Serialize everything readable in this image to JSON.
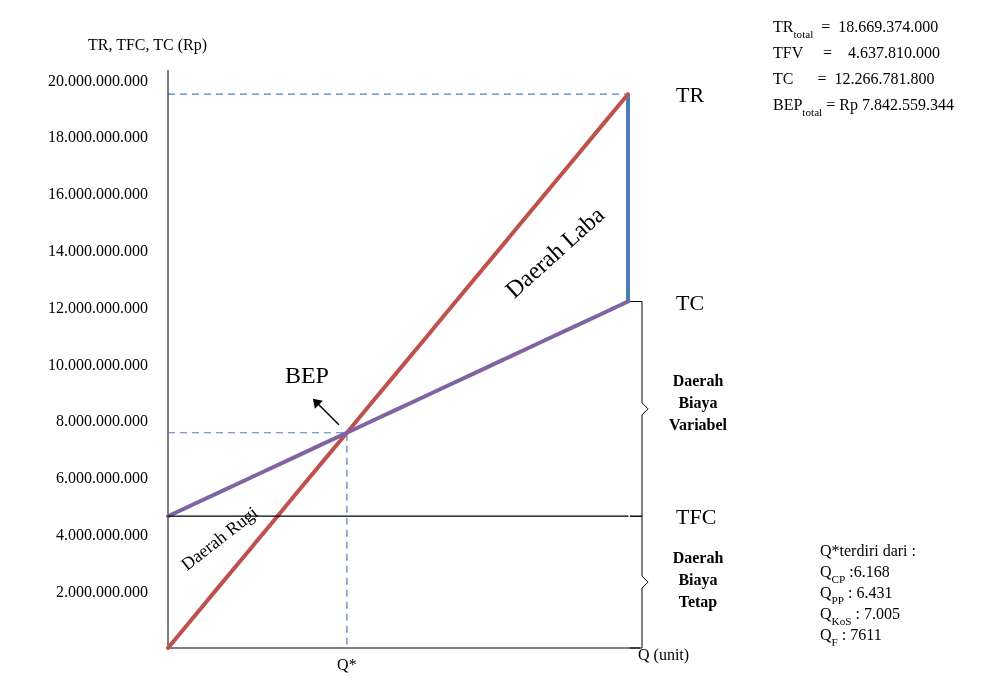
{
  "chart_data": {
    "type": "line",
    "xlabel": "Q (unit)",
    "ylabel": "TR, TFC, TC (Rp)",
    "categories": [
      null,
      null,
      null,
      null,
      null,
      null,
      null,
      "Q*",
      null,
      null,
      null,
      null,
      null,
      null,
      null,
      null,
      null,
      null,
      null
    ],
    "ylim": [
      0,
      20000000000
    ],
    "yticks": [
      {
        "value": 2000000000,
        "label": "2.000.000.000"
      },
      {
        "value": 4000000000,
        "label": "4.000.000.000"
      },
      {
        "value": 6000000000,
        "label": "6.000.000.000"
      },
      {
        "value": 8000000000,
        "label": "8.000.000.000"
      },
      {
        "value": 10000000000,
        "label": "10.000.000.000"
      },
      {
        "value": 12000000000,
        "label": "12.000.000.000"
      },
      {
        "value": 14000000000,
        "label": "14.000.000.000"
      },
      {
        "value": 16000000000,
        "label": "16.000.000.000"
      },
      {
        "value": 18000000000,
        "label": "18.000.000.000"
      },
      {
        "value": 20000000000,
        "label": "20.000.000.000"
      }
    ],
    "grid": false,
    "legend": false,
    "marker": "none",
    "series": [
      {
        "name": "TR",
        "color": "#c0504d",
        "values": [
          0,
          1080000000,
          2170000000,
          3250000000,
          4330000000,
          5420000000,
          6500000000,
          7580000000,
          8670000000,
          9750000000,
          10830000000,
          11920000000,
          13000000000,
          14080000000,
          15170000000,
          16250000000,
          17330000000,
          18420000000,
          19500000000
        ]
      },
      {
        "name": "TC",
        "color": "#8064a2",
        "values": [
          4640000000,
          5060000000,
          5480000000,
          5900000000,
          6320000000,
          6740000000,
          7160000000,
          7580000000,
          8000000000,
          8420000000,
          8840000000,
          9260000000,
          9680000000,
          10100000000,
          10520000000,
          10940000000,
          11360000000,
          11780000000,
          12200000000
        ]
      },
      {
        "name": "TFC",
        "color": "#000000",
        "values": [
          4640000000,
          4640000000,
          4640000000,
          4640000000,
          4640000000,
          4640000000,
          4640000000,
          4640000000,
          4640000000,
          4640000000,
          4640000000,
          4640000000,
          4640000000,
          4640000000,
          4640000000,
          4640000000,
          4640000000,
          4640000000,
          4640000000
        ]
      }
    ],
    "ref_lines": [
      {
        "axis": "y",
        "value": 19500000000,
        "color": "#4f81bd",
        "line_style": "dashed"
      }
    ],
    "annotations": [
      {
        "text": "BEP",
        "x": "Q*",
        "y": 7580000000
      },
      "Daerah Laba",
      "Daerah Rugi",
      "Daerah\nBiaya\nVariabel",
      "Daerah\nBiaya\nTetap",
      "TR$_{total}$  =  18.669.374.000\nTFV     =    4.637.810.000\nTC      =  12.266.781.800\nBEP$_{total}$ = Rp 7.842.559.344",
      "Q*terdiri dari :\nQ$_{CP}$ :6.168\nQ$_{PP}$ : 6.431\nQ$_{KoS}$ : 7.005\nQ$_{F}$ : 7611"
    ]
  }
}
